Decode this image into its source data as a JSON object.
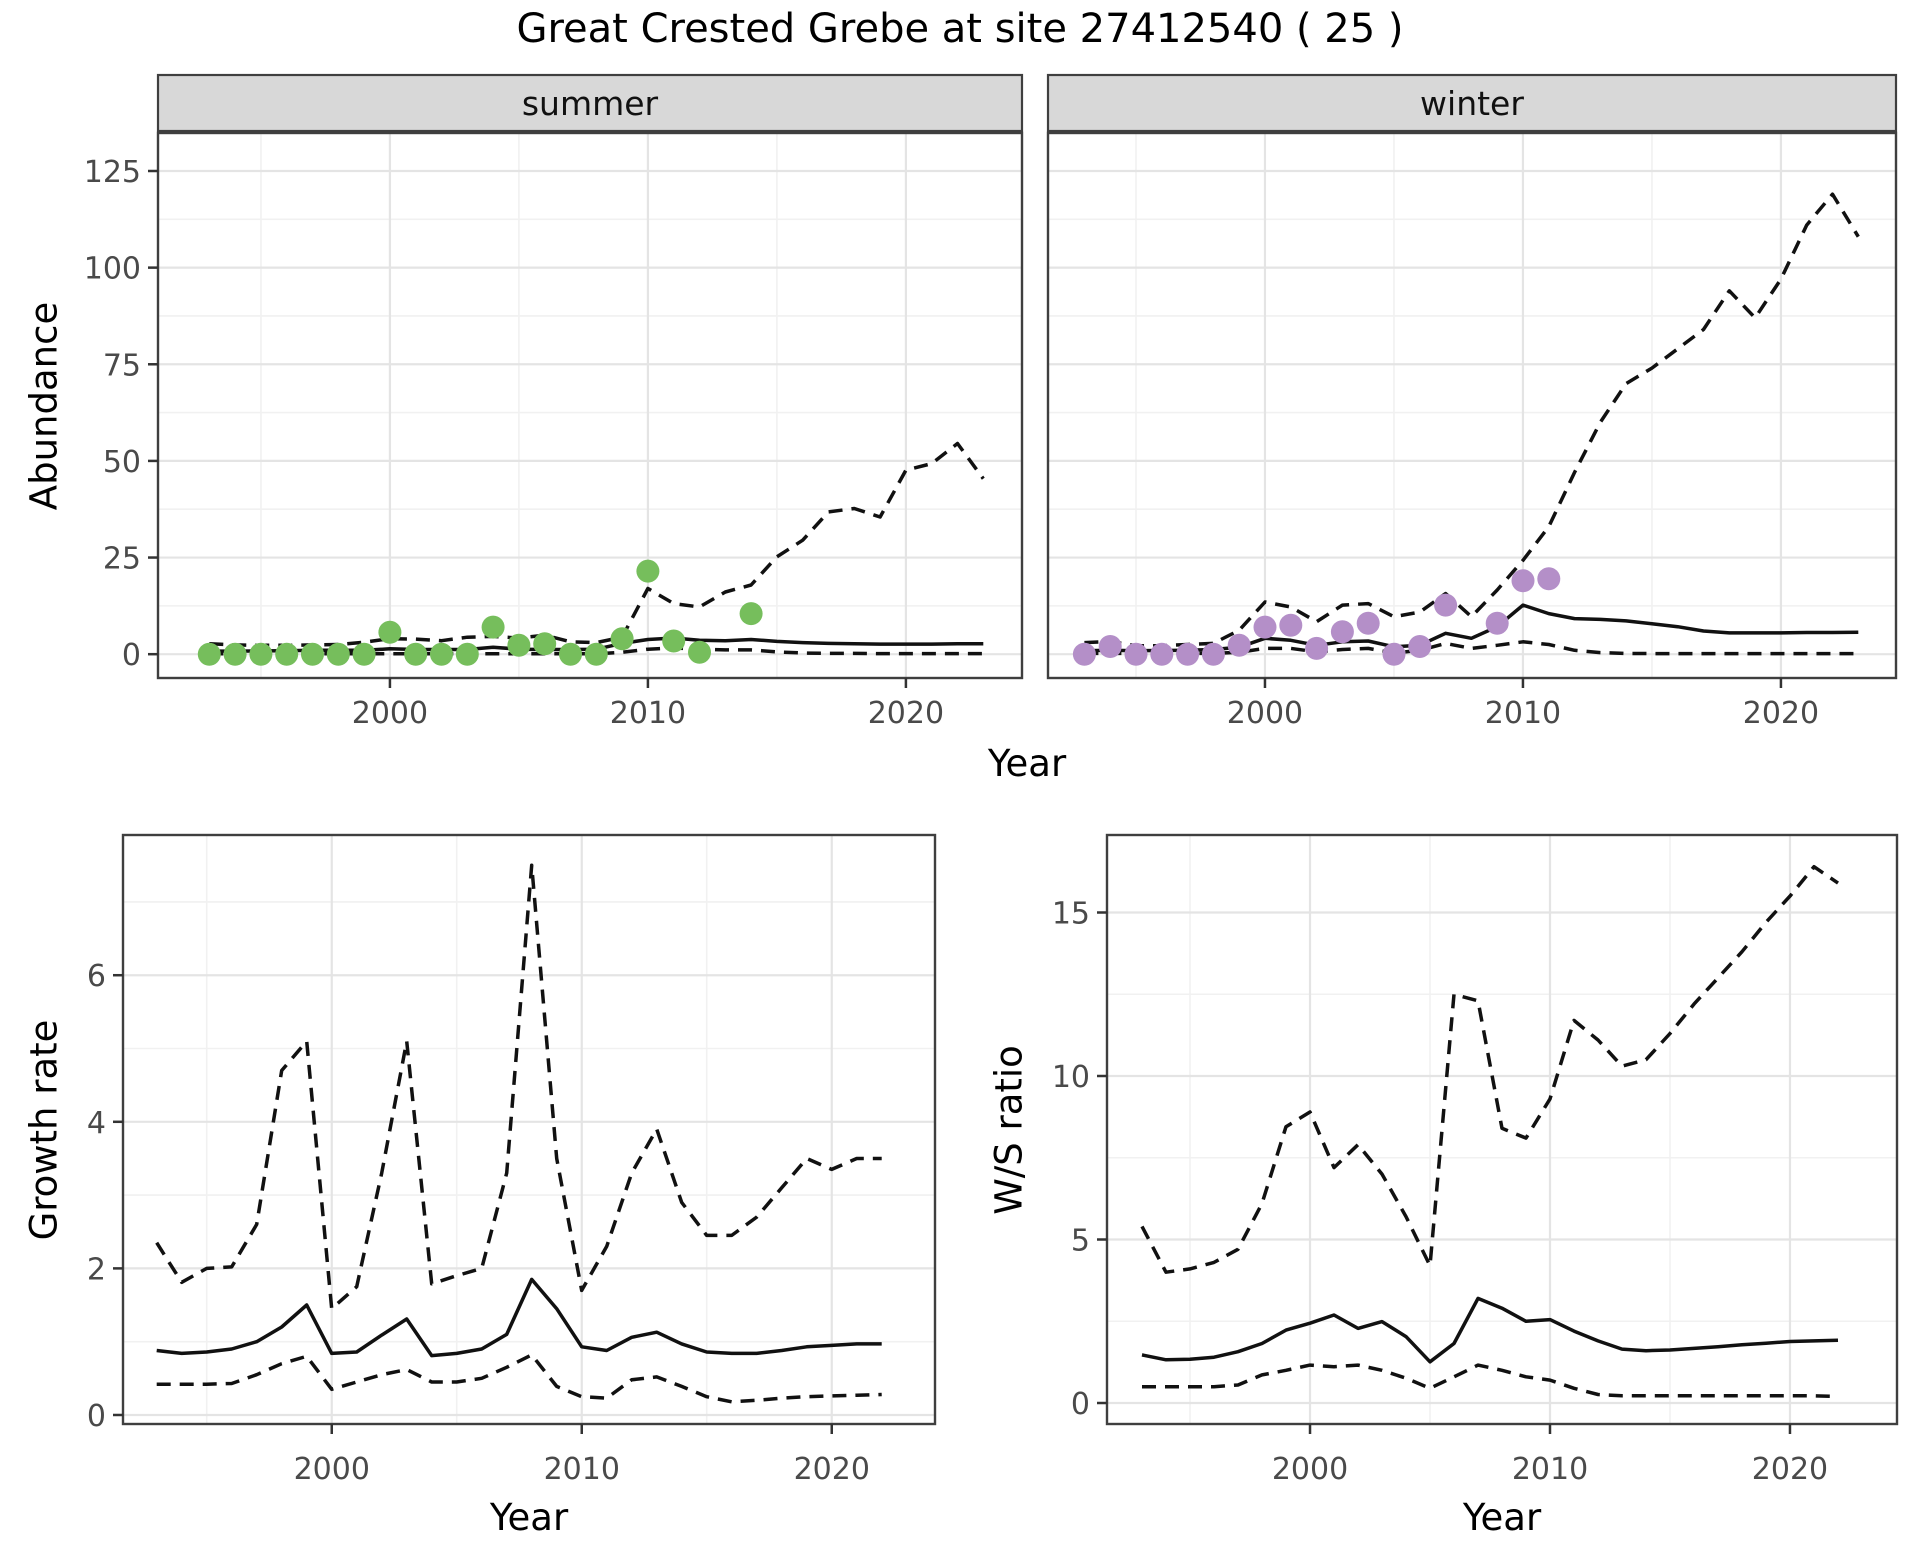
{
  "labels": {
    "title": "Great Crested Grebe at site 27412540 ( 25 )",
    "facet_summer": "summer",
    "facet_winter": "winter",
    "abundance": "Abundance",
    "growth_rate": "Growth rate",
    "ws_ratio": "W/S ratio",
    "year": "Year"
  },
  "colors": {
    "summer_points": "#76BE5C",
    "winter_points": "#B48FC8",
    "line": "#111111",
    "grid_major": "#e4e4e4",
    "grid_minor": "#f1f1f1",
    "panel_border": "#3f3f3f",
    "strip_bg": "#d8d8d8",
    "tick_mark": "#333333",
    "tick_text": "#4a4a4a"
  },
  "chart_data": [
    {
      "type": "line",
      "facet": "summer",
      "title": "Abundance of Great Crested Grebe, summer facet",
      "xlabel": "Year",
      "ylabel": "Abundance",
      "xlim": [
        1991.01,
        2024.5
      ],
      "ylim": [
        -6.16,
        134.83
      ],
      "xticks": [
        2000,
        2010,
        2020
      ],
      "xminorticks": [
        1995,
        2005,
        2015
      ],
      "yticks": [
        0,
        25,
        50,
        75,
        100,
        125
      ],
      "yminorticks": [
        12.5,
        37.5,
        62.5,
        87.5,
        112.5
      ],
      "grid": true,
      "legend": "none",
      "years": [
        1993,
        1994,
        1995,
        1996,
        1997,
        1998,
        1999,
        2000,
        2001,
        2002,
        2003,
        2004,
        2005,
        2006,
        2007,
        2008,
        2009,
        2010,
        2011,
        2012,
        2013,
        2014,
        2015,
        2016,
        2017,
        2018,
        2019,
        2020,
        2021,
        2022,
        2023
      ],
      "series": [
        {
          "name": "fit",
          "style": "solid",
          "values": [
            0.8,
            0.8,
            0.85,
            0.9,
            1.0,
            1.0,
            1.0,
            1.4,
            1.2,
            1.2,
            1.2,
            1.8,
            1.3,
            1.2,
            1.2,
            1.3,
            2.8,
            3.8,
            4.2,
            3.6,
            3.5,
            3.8,
            3.3,
            3.0,
            2.8,
            2.7,
            2.6,
            2.6,
            2.6,
            2.7,
            2.7
          ]
        },
        {
          "name": "upper_ci",
          "style": "dashed",
          "values": [
            2.7,
            2.4,
            2.3,
            2.3,
            2.4,
            2.5,
            3.1,
            4.0,
            3.9,
            3.5,
            4.4,
            4.6,
            4.2,
            4.9,
            3.2,
            3.0,
            4.4,
            17.0,
            13.1,
            12.2,
            16.1,
            17.9,
            25.2,
            29.5,
            36.8,
            37.7,
            35.5,
            47.6,
            49.3,
            54.5,
            45.4
          ]
        },
        {
          "name": "lower_ci",
          "style": "dashed",
          "values": [
            0.1,
            0.1,
            0.1,
            0.1,
            0.1,
            0.1,
            0.1,
            0.1,
            0.1,
            0.1,
            0.1,
            0.1,
            0.1,
            0.1,
            0.1,
            0.1,
            0.5,
            1.3,
            1.6,
            1.3,
            1.1,
            1.1,
            0.6,
            0.3,
            0.2,
            0.2,
            0.15,
            0.15,
            0.15,
            0.15,
            0.15
          ]
        }
      ],
      "points": {
        "name": "observed_counts",
        "color": "#76BE5C",
        "data": [
          [
            1993,
            0
          ],
          [
            1994,
            0
          ],
          [
            1995,
            0
          ],
          [
            1996,
            0
          ],
          [
            1997,
            0
          ],
          [
            1998,
            0
          ],
          [
            1999,
            0
          ],
          [
            2000,
            5.7
          ],
          [
            2001,
            0
          ],
          [
            2002,
            0
          ],
          [
            2003,
            0
          ],
          [
            2004,
            7
          ],
          [
            2005,
            2.3
          ],
          [
            2006,
            2.7
          ],
          [
            2007,
            0
          ],
          [
            2008,
            0
          ],
          [
            2009,
            4
          ],
          [
            2010,
            21.5
          ],
          [
            2011,
            3.4
          ],
          [
            2012,
            0.5
          ],
          [
            2014,
            10.5
          ]
        ]
      }
    },
    {
      "type": "line",
      "facet": "winter",
      "title": "Abundance of Great Crested Grebe, winter facet",
      "xlabel": "Year",
      "ylabel": "Abundance",
      "xlim": [
        1991.59,
        2024.46
      ],
      "ylim": [
        -6.16,
        134.83
      ],
      "xticks": [
        2000,
        2010,
        2020
      ],
      "xminorticks": [
        1995,
        2005,
        2015
      ],
      "yticks": [
        0,
        25,
        50,
        75,
        100,
        125
      ],
      "yminorticks": [
        12.5,
        37.5,
        62.5,
        87.5,
        112.5
      ],
      "grid": true,
      "legend": "none",
      "years": [
        1993,
        1994,
        1995,
        1996,
        1997,
        1998,
        1999,
        2000,
        2001,
        2002,
        2003,
        2004,
        2005,
        2006,
        2007,
        2008,
        2009,
        2010,
        2011,
        2012,
        2013,
        2014,
        2015,
        2016,
        2017,
        2018,
        2019,
        2020,
        2021,
        2022,
        2023
      ],
      "series": [
        {
          "name": "fit",
          "style": "solid",
          "values": [
            0.9,
            1.0,
            0.9,
            0.95,
            1.0,
            1.2,
            1.8,
            4.1,
            3.6,
            2.3,
            3.2,
            3.4,
            1.9,
            2.3,
            5.4,
            4.1,
            7.1,
            12.7,
            10.5,
            9.2,
            9.0,
            8.6,
            7.9,
            7.1,
            6.0,
            5.5,
            5.5,
            5.5,
            5.6,
            5.6,
            5.7
          ]
        },
        {
          "name": "upper_ci",
          "style": "dashed",
          "values": [
            3.0,
            3.3,
            2.2,
            2.2,
            2.5,
            2.8,
            6.2,
            13.5,
            12.2,
            8.4,
            12.7,
            13.1,
            9.7,
            10.9,
            15.7,
            9.7,
            16.6,
            24.3,
            33,
            47,
            60,
            70,
            74,
            79,
            84,
            94,
            87,
            97,
            111,
            119,
            108
          ]
        },
        {
          "name": "lower_ci",
          "style": "dashed",
          "values": [
            0.2,
            0.2,
            0.2,
            0.2,
            0.2,
            0.2,
            0.5,
            1.5,
            1.5,
            0.6,
            1.2,
            1.5,
            0.3,
            1.0,
            2.8,
            1.5,
            2.3,
            3.2,
            2.5,
            1.0,
            0.4,
            0.2,
            0.15,
            0.15,
            0.15,
            0.15,
            0.15,
            0.15,
            0.15,
            0.15,
            0.15
          ]
        }
      ],
      "points": {
        "name": "observed_counts",
        "color": "#B48FC8",
        "data": [
          [
            1993,
            0
          ],
          [
            1994,
            2
          ],
          [
            1995,
            0
          ],
          [
            1996,
            0
          ],
          [
            1997,
            0
          ],
          [
            1998,
            0
          ],
          [
            1999,
            2.3
          ],
          [
            2000,
            7
          ],
          [
            2001,
            7.5
          ],
          [
            2002,
            1.5
          ],
          [
            2003,
            5.8
          ],
          [
            2004,
            8
          ],
          [
            2005,
            0
          ],
          [
            2006,
            2
          ],
          [
            2007,
            12.7
          ],
          [
            2009,
            8
          ],
          [
            2010,
            19
          ],
          [
            2011,
            19.5
          ]
        ]
      }
    },
    {
      "type": "line",
      "facet": null,
      "title": "Growth rate",
      "xlabel": "Year",
      "ylabel": "Growth rate",
      "xlim": [
        1991.65,
        2024.13
      ],
      "ylim": [
        -0.123,
        7.913
      ],
      "xticks": [
        2000,
        2010,
        2020
      ],
      "xminorticks": [
        1995,
        2005,
        2015
      ],
      "yticks": [
        0,
        2,
        4,
        6
      ],
      "yminorticks": [
        1,
        3,
        5,
        7
      ],
      "grid": true,
      "legend": "none",
      "years": [
        1993,
        1994,
        1995,
        1996,
        1997,
        1998,
        1999,
        2000,
        2001,
        2002,
        2003,
        2004,
        2005,
        2006,
        2007,
        2008,
        2009,
        2010,
        2011,
        2012,
        2013,
        2014,
        2015,
        2016,
        2017,
        2018,
        2019,
        2020,
        2021,
        2022
      ],
      "series": [
        {
          "name": "fit",
          "style": "solid",
          "values": [
            0.88,
            0.84,
            0.86,
            0.9,
            1.0,
            1.2,
            1.5,
            0.84,
            0.86,
            1.09,
            1.31,
            0.81,
            0.84,
            0.9,
            1.1,
            1.85,
            1.45,
            0.93,
            0.88,
            1.06,
            1.13,
            0.97,
            0.86,
            0.84,
            0.84,
            0.88,
            0.93,
            0.95,
            0.97,
            0.97
          ]
        },
        {
          "name": "upper_ci",
          "style": "dashed",
          "values": [
            2.35,
            1.81,
            2.0,
            2.02,
            2.6,
            4.7,
            5.1,
            1.45,
            1.75,
            3.3,
            5.1,
            1.79,
            1.9,
            2.0,
            3.3,
            7.5,
            3.5,
            1.7,
            2.3,
            3.3,
            3.9,
            2.9,
            2.45,
            2.45,
            2.7,
            3.1,
            3.5,
            3.35,
            3.5,
            3.5
          ]
        },
        {
          "name": "lower_ci",
          "style": "dashed",
          "values": [
            0.42,
            0.42,
            0.42,
            0.43,
            0.55,
            0.7,
            0.8,
            0.35,
            0.45,
            0.55,
            0.62,
            0.45,
            0.45,
            0.5,
            0.65,
            0.82,
            0.39,
            0.25,
            0.23,
            0.48,
            0.52,
            0.39,
            0.25,
            0.18,
            0.2,
            0.23,
            0.25,
            0.26,
            0.27,
            0.28
          ]
        }
      ],
      "points": null
    },
    {
      "type": "line",
      "facet": null,
      "title": "Winter/Summer ratio",
      "xlabel": "Year",
      "ylabel": "W/S ratio",
      "xlim": [
        1991.54,
        2024.46
      ],
      "ylim": [
        -0.642,
        17.37
      ],
      "xticks": [
        2000,
        2010,
        2020
      ],
      "xminorticks": [
        1995,
        2005,
        2015
      ],
      "yticks": [
        0,
        5,
        10,
        15
      ],
      "yminorticks": [
        2.5,
        7.5,
        12.5
      ],
      "grid": true,
      "legend": "none",
      "years": [
        1993,
        1994,
        1995,
        1996,
        1997,
        1998,
        1999,
        2000,
        2001,
        2002,
        2003,
        2004,
        2005,
        2006,
        2007,
        2008,
        2009,
        2010,
        2011,
        2012,
        2013,
        2014,
        2015,
        2016,
        2017,
        2018,
        2019,
        2020,
        2021,
        2022
      ],
      "series": [
        {
          "name": "fit",
          "style": "solid",
          "values": [
            1.47,
            1.32,
            1.34,
            1.4,
            1.57,
            1.82,
            2.23,
            2.44,
            2.69,
            2.28,
            2.49,
            2.03,
            1.26,
            1.82,
            3.2,
            2.9,
            2.5,
            2.55,
            2.2,
            1.9,
            1.65,
            1.6,
            1.62,
            1.67,
            1.72,
            1.78,
            1.83,
            1.88,
            1.9,
            1.92
          ]
        },
        {
          "name": "upper_ci",
          "style": "dashed",
          "values": [
            5.4,
            4.0,
            4.1,
            4.3,
            4.7,
            6.1,
            8.45,
            8.9,
            7.2,
            7.9,
            7.0,
            5.7,
            4.2,
            12.5,
            12.3,
            8.4,
            8.1,
            9.3,
            11.7,
            11.1,
            10.3,
            10.5,
            11.3,
            12.2,
            13.0,
            13.8,
            14.7,
            15.5,
            16.4,
            15.9
          ]
        },
        {
          "name": "lower_ci",
          "style": "dashed",
          "values": [
            0.5,
            0.5,
            0.5,
            0.5,
            0.55,
            0.86,
            1.0,
            1.16,
            1.11,
            1.16,
            1.0,
            0.76,
            0.45,
            0.8,
            1.16,
            1.0,
            0.8,
            0.7,
            0.45,
            0.26,
            0.22,
            0.22,
            0.22,
            0.22,
            0.22,
            0.22,
            0.22,
            0.22,
            0.22,
            0.2
          ]
        }
      ],
      "points": null
    }
  ]
}
